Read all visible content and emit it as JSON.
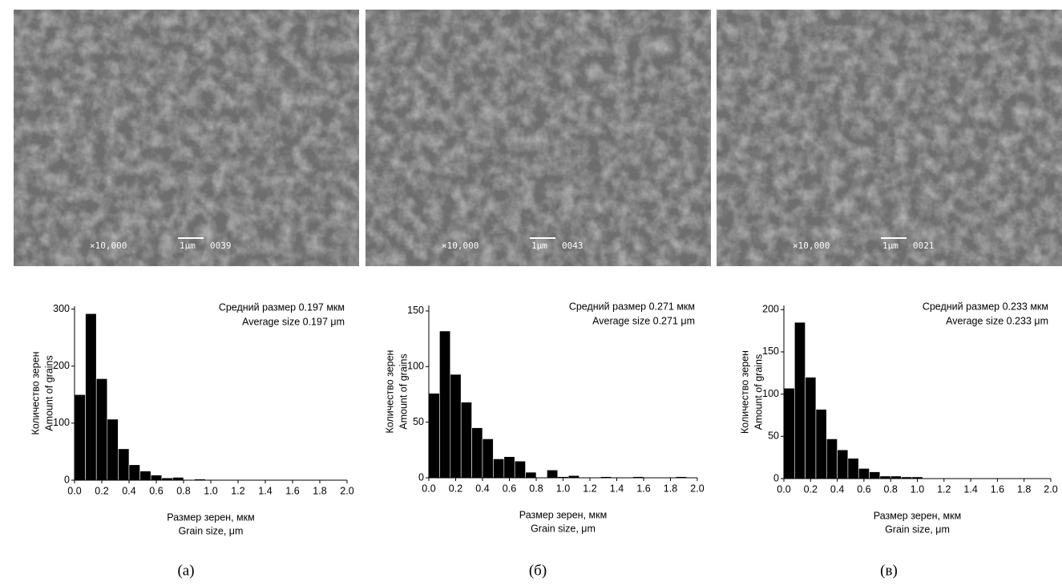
{
  "images": [
    {
      "magnification": "×10,000",
      "scale_bar": "1μm",
      "frame": "0039"
    },
    {
      "magnification": "×10,000",
      "scale_bar": "1μm",
      "frame": "0043"
    },
    {
      "magnification": "×10,000",
      "scale_bar": "1μm",
      "frame": "0021"
    }
  ],
  "panel_labels": [
    "(а)",
    "(б)",
    "(в)"
  ],
  "chart_data": [
    {
      "type": "histogram",
      "color": "#000000",
      "bins": [
        0,
        0.08,
        0.16,
        0.24,
        0.32,
        0.4,
        0.48,
        0.56,
        0.64,
        0.72,
        0.8,
        0.88,
        0.96,
        1.04,
        1.12,
        1.2,
        1.28,
        1.36,
        1.44,
        1.52,
        1.6,
        1.68,
        1.76,
        1.84,
        1.92,
        2.0
      ],
      "values": [
        150,
        292,
        178,
        107,
        55,
        27,
        16,
        9,
        4,
        5,
        0,
        2,
        0,
        0,
        0,
        0,
        0,
        0,
        0,
        0,
        0,
        0,
        0,
        0,
        0
      ],
      "xlim": [
        0,
        2.0
      ],
      "xticks": [
        {
          "value": 0,
          "label": "0.0"
        },
        0.2,
        0.4,
        0.6,
        0.8,
        {
          "value": 1,
          "label": "1.0"
        },
        1.2,
        1.4,
        1.6,
        1.8,
        {
          "value": 2,
          "label": "2.0"
        }
      ],
      "ylim": [
        0,
        305
      ],
      "yticks": [
        0,
        100,
        200,
        300
      ],
      "ylabel": [
        "Количество зерен",
        "Amount of grains"
      ],
      "xlabel": [
        "Размер зерен, мкм",
        "Grain size, μm"
      ],
      "annotation": [
        "Средний размер 0.197 мкм",
        "Average size 0.197 μm"
      ]
    },
    {
      "type": "histogram",
      "color": "#000000",
      "bins": [
        0,
        0.08,
        0.16,
        0.24,
        0.32,
        0.4,
        0.48,
        0.56,
        0.64,
        0.72,
        0.8,
        0.88,
        0.96,
        1.04,
        1.12,
        1.2,
        1.28,
        1.36,
        1.44,
        1.52,
        1.6,
        1.68,
        1.76,
        1.84,
        1.92,
        2.0
      ],
      "values": [
        76,
        132,
        93,
        68,
        45,
        35,
        17,
        19,
        15,
        5,
        0,
        7,
        1,
        2,
        0,
        0,
        1,
        0,
        0,
        1,
        0,
        0,
        0,
        1,
        0
      ],
      "xlim": [
        0,
        2.0
      ],
      "xticks": [
        {
          "value": 0,
          "label": "0.0"
        },
        0.2,
        0.4,
        0.6,
        0.8,
        {
          "value": 1,
          "label": "1.0"
        },
        1.2,
        1.4,
        1.6,
        1.8,
        {
          "value": 2,
          "label": "2.0"
        }
      ],
      "ylim": [
        0,
        155
      ],
      "yticks": [
        0,
        50,
        100,
        150
      ],
      "ylabel": [
        "Количество зерен",
        "Amount of grains"
      ],
      "xlabel": [
        "Размер зерен, мкм",
        "Grain size, μm"
      ],
      "annotation": [
        "Средний размер 0.271 мкм",
        "Average size 0.271 μm"
      ]
    },
    {
      "type": "histogram",
      "color": "#000000",
      "bins": [
        0,
        0.08,
        0.16,
        0.24,
        0.32,
        0.4,
        0.48,
        0.56,
        0.64,
        0.72,
        0.8,
        0.88,
        0.96,
        1.04,
        1.12,
        1.2,
        1.28,
        1.36,
        1.44,
        1.52,
        1.6,
        1.68,
        1.76,
        1.84,
        1.92,
        2.0
      ],
      "values": [
        107,
        185,
        120,
        82,
        47,
        34,
        24,
        12,
        8,
        3,
        3,
        2,
        2,
        0,
        0,
        0,
        0,
        0,
        0,
        0,
        0,
        0,
        0,
        0,
        0
      ],
      "xlim": [
        0,
        2.0
      ],
      "xticks": [
        {
          "value": 0,
          "label": "0.0"
        },
        0.2,
        0.4,
        0.6,
        0.8,
        {
          "value": 1,
          "label": "1.0"
        },
        1.2,
        1.4,
        1.6,
        1.8,
        {
          "value": 2,
          "label": "2.0"
        }
      ],
      "ylim": [
        0,
        205
      ],
      "yticks": [
        0,
        50,
        100,
        150,
        200
      ],
      "ylabel": [
        "Количество зерен",
        "Amount of grains"
      ],
      "xlabel": [
        "Размер зерен, мкм",
        "Grain size, μm"
      ],
      "annotation": [
        "Средний размер 0.233 мкм",
        "Average size 0.233 μm"
      ]
    }
  ]
}
